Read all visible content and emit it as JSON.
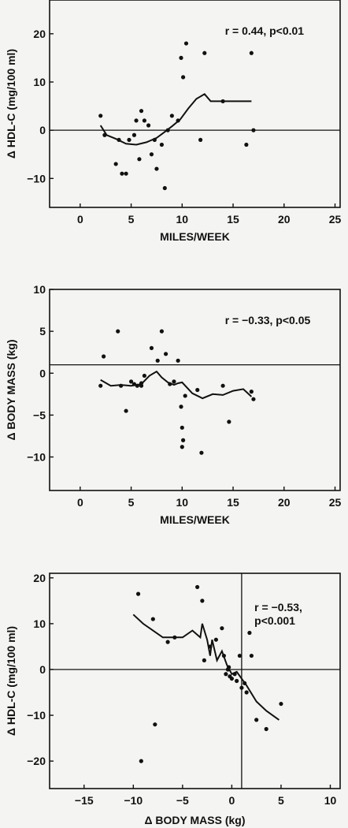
{
  "chart_data": [
    {
      "type": "scatter",
      "ylabel": "Δ HDL-C (mg/100 ml)",
      "xlabel": "MILES/WEEK",
      "annotation": [
        "r = 0.44, p<0.01"
      ],
      "xlim": [
        -3,
        25.5
      ],
      "ylim": [
        -16,
        27
      ],
      "xticks": [
        0,
        5,
        10,
        15,
        20,
        25
      ],
      "yticks": [
        -10,
        0,
        10,
        20
      ],
      "ref_lines": {
        "h": [
          0
        ],
        "v": []
      },
      "points": [
        [
          2,
          3
        ],
        [
          2.4,
          -1
        ],
        [
          3.8,
          -2
        ],
        [
          3.5,
          -7
        ],
        [
          4.1,
          -9
        ],
        [
          4.5,
          -9
        ],
        [
          4.8,
          -2
        ],
        [
          5.3,
          -1
        ],
        [
          5.5,
          2
        ],
        [
          5.8,
          -6
        ],
        [
          6,
          4
        ],
        [
          6.3,
          2
        ],
        [
          6.7,
          1
        ],
        [
          7,
          -5
        ],
        [
          7.5,
          -8
        ],
        [
          7.3,
          -2
        ],
        [
          8,
          -3
        ],
        [
          8.3,
          -12
        ],
        [
          8.6,
          0
        ],
        [
          9,
          3
        ],
        [
          9.6,
          2
        ],
        [
          9.9,
          15
        ],
        [
          10.1,
          11
        ],
        [
          10.4,
          18
        ],
        [
          11.8,
          -2
        ],
        [
          12.2,
          16
        ],
        [
          14,
          6
        ],
        [
          16.3,
          -3
        ],
        [
          16.8,
          16
        ],
        [
          17,
          0
        ]
      ],
      "trend": [
        [
          2,
          1
        ],
        [
          2.6,
          -1
        ],
        [
          3.5,
          -1.8
        ],
        [
          4.5,
          -2.8
        ],
        [
          5.5,
          -3
        ],
        [
          6.5,
          -2.5
        ],
        [
          7.5,
          -1.6
        ],
        [
          8.2,
          -0.5
        ],
        [
          9,
          0.8
        ],
        [
          9.8,
          2.2
        ],
        [
          10.6,
          4.5
        ],
        [
          11.4,
          6.5
        ],
        [
          12.2,
          7.5
        ],
        [
          12.8,
          6
        ],
        [
          14,
          6
        ],
        [
          15,
          6
        ],
        [
          16.8,
          6
        ]
      ]
    },
    {
      "type": "scatter",
      "ylabel": "Δ BODY MASS (kg)",
      "xlabel": "MILES/WEEK",
      "annotation": [
        "r = −0.33, p<0.05"
      ],
      "xlim": [
        -3,
        25.5
      ],
      "ylim": [
        -14,
        10
      ],
      "xticks": [
        0,
        5,
        10,
        15,
        20,
        25
      ],
      "yticks": [
        -10,
        -5,
        0,
        5,
        10
      ],
      "ref_lines": {
        "h": [
          1
        ],
        "v": []
      },
      "points": [
        [
          2,
          -1.5
        ],
        [
          2.3,
          2
        ],
        [
          3.7,
          5
        ],
        [
          4,
          -1.5
        ],
        [
          4.5,
          -4.5
        ],
        [
          5,
          -1
        ],
        [
          5.3,
          -1.3
        ],
        [
          5.6,
          -1.5
        ],
        [
          6,
          -1.5
        ],
        [
          6.3,
          -0.3
        ],
        [
          7,
          3
        ],
        [
          7.6,
          1.5
        ],
        [
          8,
          5
        ],
        [
          8.4,
          2.3
        ],
        [
          8.8,
          -1.3
        ],
        [
          9.2,
          -1
        ],
        [
          9.6,
          1.5
        ],
        [
          9.9,
          -4
        ],
        [
          10,
          -6.5
        ],
        [
          10.1,
          -8
        ],
        [
          10.3,
          -2.7
        ],
        [
          11.5,
          -2
        ],
        [
          11.9,
          -9.5
        ],
        [
          14,
          -1.5
        ],
        [
          14.6,
          -5.8
        ],
        [
          16.8,
          -2.2
        ],
        [
          17,
          -3.1
        ],
        [
          10,
          -8.8
        ],
        [
          6,
          -1.2
        ]
      ],
      "trend": [
        [
          2,
          -0.8
        ],
        [
          3,
          -1.5
        ],
        [
          4,
          -1.4
        ],
        [
          5,
          -1.5
        ],
        [
          6,
          -1.3
        ],
        [
          6.8,
          -0.3
        ],
        [
          7.5,
          0.2
        ],
        [
          8,
          -0.5
        ],
        [
          8.6,
          -1.1
        ],
        [
          9.2,
          -1.4
        ],
        [
          9.6,
          -1.2
        ],
        [
          10,
          -1.1
        ],
        [
          11,
          -2.4
        ],
        [
          12,
          -3
        ],
        [
          13,
          -2.5
        ],
        [
          14,
          -2.6
        ],
        [
          15,
          -2.1
        ],
        [
          16,
          -1.9
        ],
        [
          16.8,
          -2.8
        ]
      ]
    },
    {
      "type": "scatter",
      "ylabel": "Δ HDL-C (mg/100 ml)",
      "xlabel": "Δ BODY MASS (kg)",
      "annotation": [
        "r = −0.53,",
        "p<0.001"
      ],
      "xlim": [
        -18.5,
        11
      ],
      "ylim": [
        -26,
        21
      ],
      "xticks": [
        -15,
        -10,
        -5,
        0,
        5,
        10
      ],
      "yticks": [
        -20,
        -10,
        0,
        10,
        20
      ],
      "ref_lines": {
        "h": [
          0
        ],
        "v": [
          1
        ]
      },
      "points": [
        [
          -9.5,
          16.5
        ],
        [
          -8,
          11
        ],
        [
          -6.5,
          6
        ],
        [
          -5.8,
          7
        ],
        [
          -3.5,
          18
        ],
        [
          -3,
          15
        ],
        [
          -2.8,
          2
        ],
        [
          -1.6,
          6.5
        ],
        [
          -1,
          9
        ],
        [
          -0.8,
          3
        ],
        [
          -0.6,
          -1
        ],
        [
          -0.4,
          0
        ],
        [
          -0.2,
          -1.5
        ],
        [
          0,
          -2
        ],
        [
          0.3,
          -1
        ],
        [
          0.5,
          -2.5
        ],
        [
          0.8,
          3
        ],
        [
          1,
          -4
        ],
        [
          1.3,
          -3
        ],
        [
          1.5,
          -5
        ],
        [
          1.8,
          8
        ],
        [
          2,
          3
        ],
        [
          2.5,
          -11
        ],
        [
          3.5,
          -13
        ],
        [
          5,
          -7.5
        ],
        [
          -9.2,
          -20
        ],
        [
          -7.8,
          -12
        ],
        [
          -2.2,
          5
        ],
        [
          -0.3,
          0.5
        ]
      ],
      "trend": [
        [
          -10,
          12
        ],
        [
          -9,
          10
        ],
        [
          -8,
          8.5
        ],
        [
          -7,
          7
        ],
        [
          -6,
          7
        ],
        [
          -5,
          7
        ],
        [
          -4,
          8.5
        ],
        [
          -3.2,
          7
        ],
        [
          -3,
          10
        ],
        [
          -2.5,
          6.5
        ],
        [
          -2.2,
          3
        ],
        [
          -2,
          6.5
        ],
        [
          -1.5,
          2
        ],
        [
          -1,
          4
        ],
        [
          -0.5,
          1
        ],
        [
          0,
          -1
        ],
        [
          0.5,
          -0.5
        ],
        [
          1,
          -2
        ],
        [
          1.5,
          -3.5
        ],
        [
          2.5,
          -7
        ],
        [
          3.5,
          -9
        ],
        [
          4.8,
          -11
        ]
      ]
    }
  ]
}
